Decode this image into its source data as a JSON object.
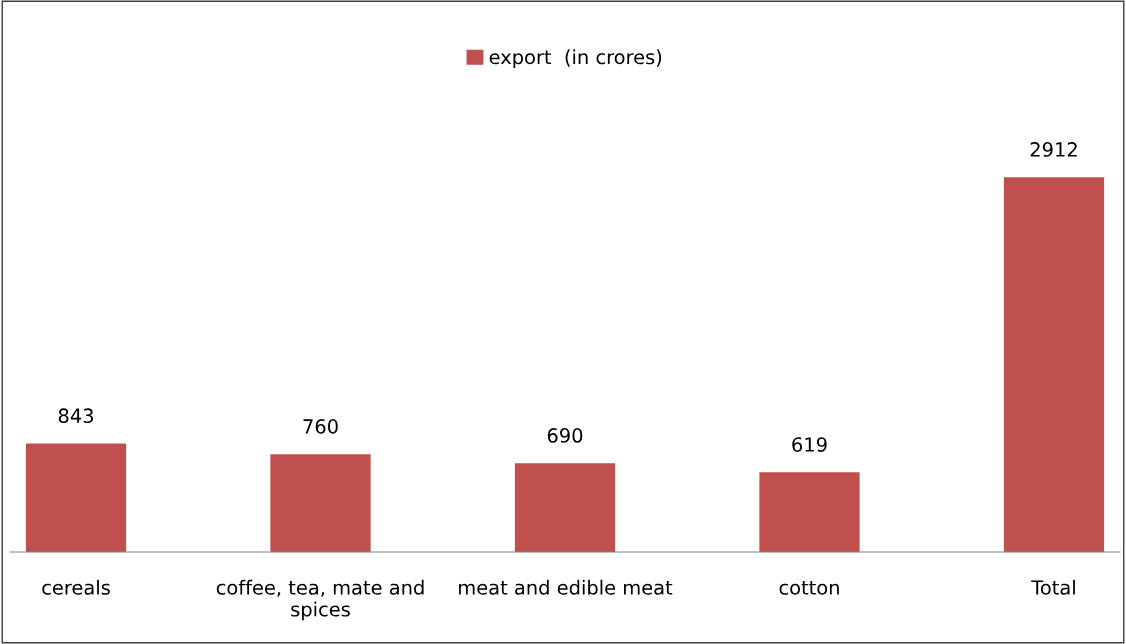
{
  "chart_data": {
    "type": "bar",
    "categories": [
      "cereals",
      "coffee, tea, mate and spices",
      "meat and edible meat",
      "cotton",
      "Total"
    ],
    "series": [
      {
        "name": "export  (in crores)",
        "color": "#c0504d",
        "values": [
          843,
          760,
          690,
          619,
          2912
        ]
      }
    ],
    "data_labels": true,
    "legend": "top",
    "grid": false
  }
}
